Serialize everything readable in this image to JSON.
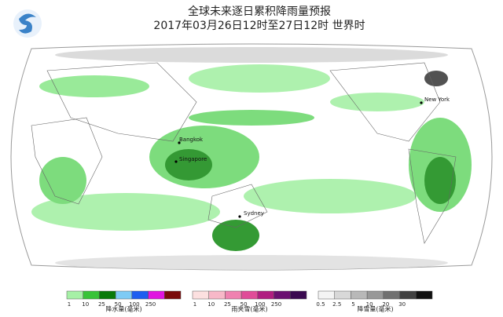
{
  "header": {
    "title": "全球未来逐日累积降雨量预报",
    "subtitle": "2017年03月26日12时至27日12时  世界时"
  },
  "map": {
    "cities": [
      {
        "name": "Bangkok"
      },
      {
        "name": "Singapore"
      },
      {
        "name": "Sydney"
      },
      {
        "name": "New York"
      }
    ]
  },
  "legends": [
    {
      "label": "降水量(毫米)",
      "colors": [
        "#a6f0a6",
        "#39c339",
        "#0a7a0a",
        "#7ecbf5",
        "#1d5ef0",
        "#e014e0",
        "#7a0a0a"
      ],
      "ticks": [
        "1",
        "10",
        "25",
        "50",
        "100",
        "250"
      ]
    },
    {
      "label": "雨夹雪(毫米)",
      "colors": [
        "#fce0e0",
        "#f7b8c8",
        "#ef82b0",
        "#e04c98",
        "#b01e80",
        "#6a1070",
        "#3a0a50"
      ],
      "ticks": [
        "1",
        "10",
        "25",
        "50",
        "100",
        "250"
      ]
    },
    {
      "label": "降雪量(毫米)",
      "colors": [
        "#f4f4f4",
        "#d8d8d8",
        "#b8b8b8",
        "#989898",
        "#707070",
        "#404040",
        "#101010"
      ],
      "ticks": [
        "0.5",
        "2.5",
        "5",
        "10",
        "20",
        "30"
      ]
    }
  ]
}
